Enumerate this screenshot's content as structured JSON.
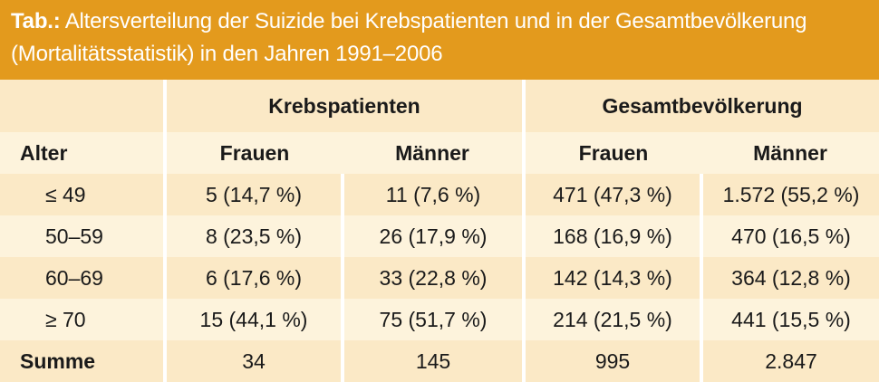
{
  "title": {
    "lead": "Tab.:",
    "line1": " Altersverteilung der Suizide bei Krebspatienten und in der Gesamtbevölkerung",
    "line2": "(Mortalitätsstatistik) in den Jahren 1991–2006"
  },
  "table": {
    "groups": [
      "Krebspatienten",
      "Gesamtbevölkerung"
    ],
    "subheader": [
      "Alter",
      "Frauen",
      "Männer",
      "Frauen",
      "Männer"
    ],
    "rows": [
      [
        "≤ 49",
        "5 (14,7 %)",
        "11 (7,6 %)",
        "471 (47,3 %)",
        "1.572 (55,2 %)"
      ],
      [
        "50–59",
        "8 (23,5 %)",
        "26 (17,9 %)",
        "168 (16,9 %)",
        "470 (16,5 %)"
      ],
      [
        "60–69",
        "6 (17,6 %)",
        "33 (22,8 %)",
        "142 (14,3 %)",
        "364 (12,8 %)"
      ],
      [
        "≥ 70",
        "15 (44,1 %)",
        "75 (51,7 %)",
        "214 (21,5 %)",
        "441 (15,5 %)"
      ]
    ],
    "sum": [
      "Summe",
      "34",
      "145",
      "995",
      "2.847"
    ]
  },
  "colors": {
    "header_bg": "#e39a1d",
    "band_dark": "#fbe9c6",
    "band_light": "#fdf3dc"
  }
}
